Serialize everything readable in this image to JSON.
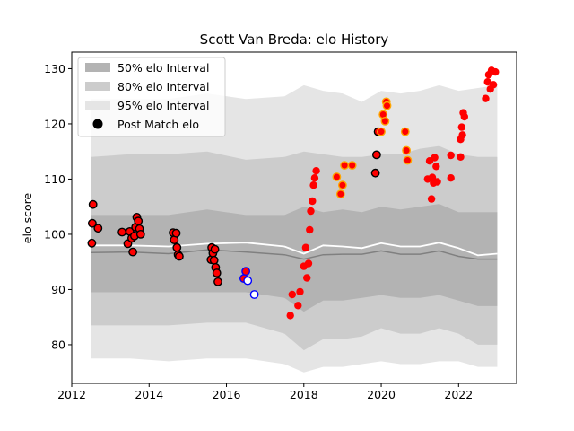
{
  "chart_data": {
    "type": "scatter",
    "title": "Scott Van Breda: elo History",
    "xlabel": "",
    "ylabel": "elo score",
    "xlim": [
      2012.0,
      2023.5
    ],
    "ylim": [
      73,
      133
    ],
    "xticks": [
      2012,
      2014,
      2016,
      2018,
      2020,
      2022
    ],
    "yticks": [
      80,
      90,
      100,
      110,
      120,
      130
    ],
    "grid": false,
    "legend_position": "top-left",
    "legend": [
      {
        "label": "50% elo Interval",
        "color": "#b3b3b3"
      },
      {
        "label": "80% elo Interval",
        "color": "#cccccc"
      },
      {
        "label": "95% elo Interval",
        "color": "#e5e5e5"
      },
      {
        "label": "Post Match elo",
        "color": "#000000"
      }
    ],
    "bands": {
      "x": [
        2012.5,
        2013.5,
        2014.5,
        2015.5,
        2016.5,
        2017.5,
        2018.0,
        2018.5,
        2019.0,
        2019.5,
        2020.0,
        2020.5,
        2021.0,
        2021.5,
        2022.0,
        2022.5,
        2023.0
      ],
      "p95_hi": [
        124.5,
        124.5,
        124.5,
        125.5,
        124.5,
        125,
        127,
        126,
        125.5,
        124,
        126,
        125.5,
        126,
        127,
        126,
        126.5,
        127
      ],
      "p80_hi": [
        114,
        114.5,
        114.5,
        115,
        113.5,
        114,
        115,
        114.5,
        114,
        114,
        114.5,
        114.5,
        115.5,
        116,
        114.5,
        114,
        114
      ],
      "p50_hi": [
        103.5,
        103.5,
        103.5,
        104.5,
        103.5,
        103.5,
        105,
        104,
        104.5,
        104,
        105,
        104.5,
        105,
        105.5,
        104,
        104,
        104
      ],
      "median": [
        96.7,
        96.8,
        96.5,
        97.2,
        96.8,
        96.3,
        95.5,
        96.3,
        96.4,
        96.4,
        97,
        96.4,
        96.4,
        97,
        96,
        95.5,
        95.5
      ],
      "mean": [
        98,
        98,
        97.8,
        98.3,
        98.5,
        97.8,
        96.5,
        98,
        97.8,
        97.5,
        98.4,
        97.8,
        97.8,
        98.5,
        97.5,
        96.2,
        96.5
      ],
      "p50_lo": [
        89.5,
        89.5,
        89.5,
        89.5,
        89.5,
        88.5,
        86,
        88,
        88,
        88.5,
        89,
        88.5,
        88.5,
        89,
        88,
        87,
        87
      ],
      "p80_lo": [
        83.5,
        83.5,
        83.5,
        84,
        84,
        82,
        79,
        81,
        81,
        81.5,
        83,
        82,
        82,
        83,
        82,
        80,
        80
      ],
      "p95_lo": [
        77.5,
        77.5,
        77,
        77.5,
        77.5,
        76.5,
        75,
        76,
        76,
        76.5,
        77,
        76.5,
        76.5,
        77,
        77,
        76,
        76
      ]
    },
    "series": [
      {
        "name": "Post Match elo",
        "points": [
          {
            "x": 2012.52,
            "y": 98.4,
            "fill": "red",
            "edge": "black"
          },
          {
            "x": 2012.53,
            "y": 102.0,
            "fill": "red",
            "edge": "black"
          },
          {
            "x": 2012.55,
            "y": 105.4,
            "fill": "red",
            "edge": "black"
          },
          {
            "x": 2012.68,
            "y": 101.1,
            "fill": "red",
            "edge": "black"
          },
          {
            "x": 2013.3,
            "y": 100.4,
            "fill": "red",
            "edge": "black"
          },
          {
            "x": 2013.45,
            "y": 98.3,
            "fill": "red",
            "edge": "black"
          },
          {
            "x": 2013.5,
            "y": 100.5,
            "fill": "red",
            "edge": "black"
          },
          {
            "x": 2013.55,
            "y": 99.3,
            "fill": "red",
            "edge": "black"
          },
          {
            "x": 2013.58,
            "y": 96.8,
            "fill": "red",
            "edge": "black"
          },
          {
            "x": 2013.62,
            "y": 99.7,
            "fill": "red",
            "edge": "black"
          },
          {
            "x": 2013.65,
            "y": 101.3,
            "fill": "red",
            "edge": "black"
          },
          {
            "x": 2013.68,
            "y": 103.1,
            "fill": "red",
            "edge": "black"
          },
          {
            "x": 2013.72,
            "y": 102.4,
            "fill": "red",
            "edge": "black"
          },
          {
            "x": 2013.75,
            "y": 101.0,
            "fill": "red",
            "edge": "black"
          },
          {
            "x": 2013.78,
            "y": 100.0,
            "fill": "red",
            "edge": "black"
          },
          {
            "x": 2014.62,
            "y": 100.3,
            "fill": "red",
            "edge": "black"
          },
          {
            "x": 2014.65,
            "y": 99.0,
            "fill": "red",
            "edge": "black"
          },
          {
            "x": 2014.7,
            "y": 100.2,
            "fill": "red",
            "edge": "black"
          },
          {
            "x": 2014.72,
            "y": 97.6,
            "fill": "red",
            "edge": "black"
          },
          {
            "x": 2014.75,
            "y": 96.3,
            "fill": "red",
            "edge": "black"
          },
          {
            "x": 2014.78,
            "y": 96.0,
            "fill": "red",
            "edge": "black"
          },
          {
            "x": 2015.6,
            "y": 95.4,
            "fill": "red",
            "edge": "black"
          },
          {
            "x": 2015.62,
            "y": 97.6,
            "fill": "red",
            "edge": "black"
          },
          {
            "x": 2015.65,
            "y": 96.6,
            "fill": "red",
            "edge": "black"
          },
          {
            "x": 2015.68,
            "y": 95.3,
            "fill": "red",
            "edge": "black"
          },
          {
            "x": 2015.7,
            "y": 97.3,
            "fill": "red",
            "edge": "black"
          },
          {
            "x": 2015.72,
            "y": 94.0,
            "fill": "red",
            "edge": "black"
          },
          {
            "x": 2015.75,
            "y": 93.0,
            "fill": "red",
            "edge": "black"
          },
          {
            "x": 2015.78,
            "y": 91.4,
            "fill": "red",
            "edge": "black"
          },
          {
            "x": 2016.45,
            "y": 92.0,
            "fill": "red",
            "edge": "blue"
          },
          {
            "x": 2016.5,
            "y": 93.3,
            "fill": "red",
            "edge": "blue"
          },
          {
            "x": 2016.55,
            "y": 91.6,
            "fill": "white",
            "edge": "blue"
          },
          {
            "x": 2016.72,
            "y": 89.1,
            "fill": "white",
            "edge": "blue"
          },
          {
            "x": 2017.65,
            "y": 85.3,
            "fill": "red",
            "edge": "none"
          },
          {
            "x": 2017.7,
            "y": 89.1,
            "fill": "red",
            "edge": "none"
          },
          {
            "x": 2017.85,
            "y": 87.1,
            "fill": "red",
            "edge": "none"
          },
          {
            "x": 2017.9,
            "y": 89.6,
            "fill": "red",
            "edge": "none"
          },
          {
            "x": 2018.0,
            "y": 94.2,
            "fill": "red",
            "edge": "none"
          },
          {
            "x": 2018.05,
            "y": 97.6,
            "fill": "red",
            "edge": "none"
          },
          {
            "x": 2018.08,
            "y": 92.1,
            "fill": "red",
            "edge": "none"
          },
          {
            "x": 2018.12,
            "y": 94.7,
            "fill": "red",
            "edge": "none"
          },
          {
            "x": 2018.15,
            "y": 100.8,
            "fill": "red",
            "edge": "none"
          },
          {
            "x": 2018.18,
            "y": 104.2,
            "fill": "red",
            "edge": "none"
          },
          {
            "x": 2018.22,
            "y": 106.0,
            "fill": "red",
            "edge": "none"
          },
          {
            "x": 2018.25,
            "y": 108.9,
            "fill": "red",
            "edge": "none"
          },
          {
            "x": 2018.28,
            "y": 110.2,
            "fill": "red",
            "edge": "none"
          },
          {
            "x": 2018.32,
            "y": 111.5,
            "fill": "red",
            "edge": "none"
          },
          {
            "x": 2018.85,
            "y": 110.4,
            "fill": "red",
            "edge": "orange"
          },
          {
            "x": 2018.95,
            "y": 107.3,
            "fill": "red",
            "edge": "orange"
          },
          {
            "x": 2019.0,
            "y": 108.9,
            "fill": "red",
            "edge": "orange"
          },
          {
            "x": 2019.05,
            "y": 112.5,
            "fill": "red",
            "edge": "orange"
          },
          {
            "x": 2019.25,
            "y": 112.5,
            "fill": "red",
            "edge": "orange"
          },
          {
            "x": 2019.85,
            "y": 111.1,
            "fill": "red",
            "edge": "black"
          },
          {
            "x": 2019.88,
            "y": 114.4,
            "fill": "red",
            "edge": "black"
          },
          {
            "x": 2019.92,
            "y": 118.6,
            "fill": "red",
            "edge": "black"
          },
          {
            "x": 2020.0,
            "y": 118.6,
            "fill": "red",
            "edge": "orange"
          },
          {
            "x": 2020.05,
            "y": 121.7,
            "fill": "red",
            "edge": "orange"
          },
          {
            "x": 2020.1,
            "y": 120.5,
            "fill": "red",
            "edge": "orange"
          },
          {
            "x": 2020.13,
            "y": 124.0,
            "fill": "red",
            "edge": "orange"
          },
          {
            "x": 2020.15,
            "y": 123.3,
            "fill": "red",
            "edge": "orange"
          },
          {
            "x": 2020.62,
            "y": 118.6,
            "fill": "red",
            "edge": "orange"
          },
          {
            "x": 2020.65,
            "y": 115.2,
            "fill": "red",
            "edge": "orange"
          },
          {
            "x": 2020.68,
            "y": 113.4,
            "fill": "red",
            "edge": "orange"
          },
          {
            "x": 2021.2,
            "y": 110.0,
            "fill": "red",
            "edge": "none"
          },
          {
            "x": 2021.25,
            "y": 113.3,
            "fill": "red",
            "edge": "none"
          },
          {
            "x": 2021.3,
            "y": 106.4,
            "fill": "red",
            "edge": "none"
          },
          {
            "x": 2021.32,
            "y": 110.3,
            "fill": "red",
            "edge": "none"
          },
          {
            "x": 2021.35,
            "y": 109.3,
            "fill": "red",
            "edge": "none"
          },
          {
            "x": 2021.38,
            "y": 113.9,
            "fill": "red",
            "edge": "none"
          },
          {
            "x": 2021.42,
            "y": 112.3,
            "fill": "red",
            "edge": "none"
          },
          {
            "x": 2021.45,
            "y": 109.5,
            "fill": "red",
            "edge": "none"
          },
          {
            "x": 2021.8,
            "y": 114.3,
            "fill": "red",
            "edge": "none"
          },
          {
            "x": 2021.8,
            "y": 110.2,
            "fill": "red",
            "edge": "none"
          },
          {
            "x": 2022.05,
            "y": 114.0,
            "fill": "red",
            "edge": "none"
          },
          {
            "x": 2022.05,
            "y": 117.2,
            "fill": "red",
            "edge": "none"
          },
          {
            "x": 2022.08,
            "y": 119.4,
            "fill": "red",
            "edge": "none"
          },
          {
            "x": 2022.1,
            "y": 118.0,
            "fill": "red",
            "edge": "none"
          },
          {
            "x": 2022.12,
            "y": 122.0,
            "fill": "red",
            "edge": "none"
          },
          {
            "x": 2022.15,
            "y": 121.3,
            "fill": "red",
            "edge": "none"
          },
          {
            "x": 2022.7,
            "y": 124.6,
            "fill": "red",
            "edge": "none"
          },
          {
            "x": 2022.75,
            "y": 127.6,
            "fill": "red",
            "edge": "none"
          },
          {
            "x": 2022.78,
            "y": 128.9,
            "fill": "red",
            "edge": "none"
          },
          {
            "x": 2022.82,
            "y": 126.3,
            "fill": "red",
            "edge": "none"
          },
          {
            "x": 2022.85,
            "y": 129.7,
            "fill": "red",
            "edge": "none"
          },
          {
            "x": 2022.9,
            "y": 127.1,
            "fill": "red",
            "edge": "none"
          },
          {
            "x": 2022.95,
            "y": 129.4,
            "fill": "red",
            "edge": "none"
          }
        ]
      }
    ],
    "colors": {
      "band95": "#e5e5e5",
      "band80": "#cccccc",
      "band50": "#b3b3b3",
      "median_line": "#808080",
      "mean_line": "#ffffff",
      "marker_fill": "red",
      "axis": "#000000"
    }
  }
}
